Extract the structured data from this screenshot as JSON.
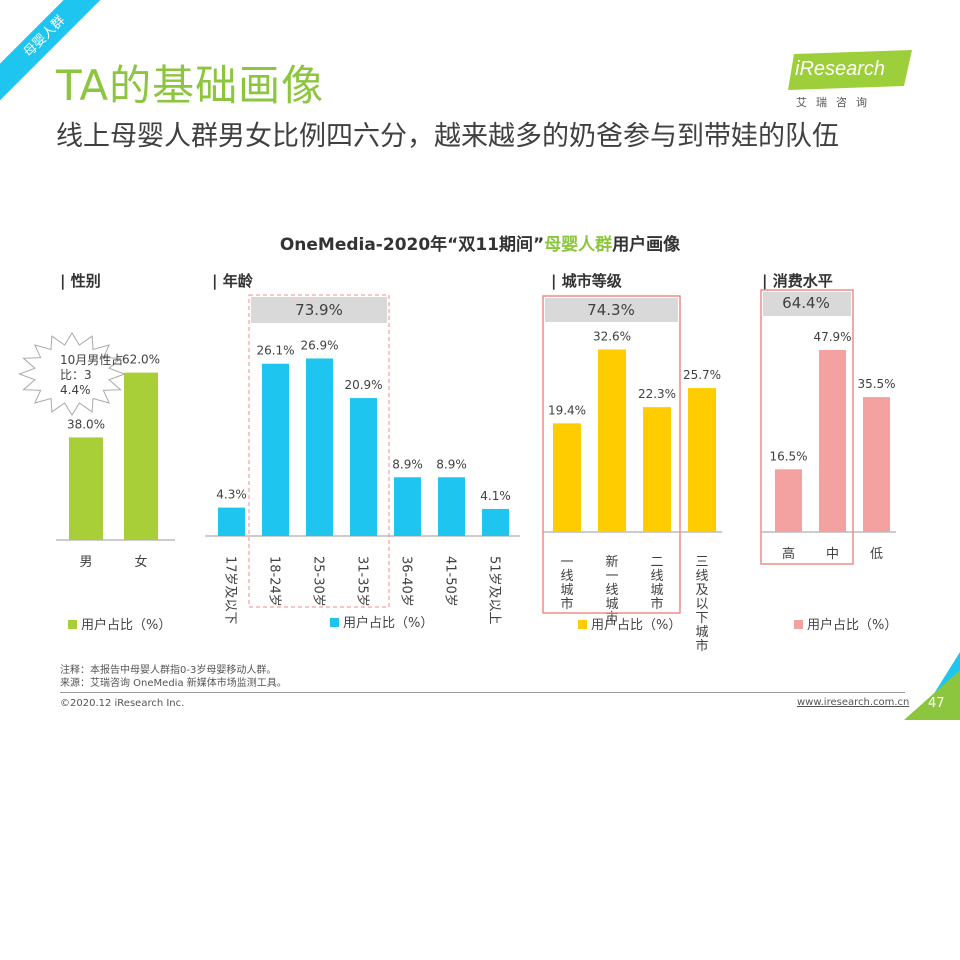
{
  "header": {
    "corner_tag": "母婴人群",
    "title": "TA的基础画像",
    "subtitle": "线上母婴人群男女比例四六分，越来越多的奶爸参与到带娃的队伍"
  },
  "logo": {
    "name": "iResearch",
    "cn": "艾瑞咨询"
  },
  "chart_title": {
    "prefix": "OneMedia-2020年“双11期间”",
    "highlight": "母婴人群",
    "suffix": "用户画像"
  },
  "chart_data": [
    {
      "type": "bar",
      "section": "| 性别",
      "categories": [
        "男",
        "女"
      ],
      "series": [
        {
          "name": "用户占比（%）",
          "values": [
            38.0,
            62.0
          ]
        }
      ],
      "value_labels": [
        "38.0%",
        "62.0%"
      ],
      "color": "#a9cf38",
      "annotation": "10月男性占比：34.4%",
      "legend": "bottom"
    },
    {
      "type": "bar",
      "section": "| 年龄",
      "categories": [
        "17岁及以下",
        "18-24岁",
        "25-30岁",
        "31-35岁",
        "36-40岁",
        "41-50岁",
        "51岁及以上"
      ],
      "series": [
        {
          "name": "用户占比（%）",
          "values": [
            4.3,
            26.1,
            26.9,
            20.9,
            8.9,
            8.9,
            4.1
          ]
        }
      ],
      "value_labels": [
        "4.3%",
        "26.1%",
        "26.9%",
        "20.9%",
        "8.9%",
        "8.9%",
        "4.1%"
      ],
      "color": "#1ec5ee",
      "group_total": "73.9%",
      "legend": "bottom"
    },
    {
      "type": "bar",
      "section": "| 城市等级",
      "categories": [
        "一线城市",
        "新一线城市",
        "二线城市",
        "三线及以下城市"
      ],
      "series": [
        {
          "name": "用户占比（%）",
          "values": [
            19.4,
            32.6,
            22.3,
            25.7
          ]
        }
      ],
      "value_labels": [
        "19.4%",
        "32.6%",
        "22.3%",
        "25.7%"
      ],
      "color": "#ffcc00",
      "group_total": "74.3%",
      "legend": "bottom"
    },
    {
      "type": "bar",
      "section": "| 消费水平",
      "categories": [
        "高",
        "中",
        "低"
      ],
      "series": [
        {
          "name": "用户占比（%）",
          "values": [
            16.5,
            47.9,
            35.5
          ]
        }
      ],
      "value_labels": [
        "16.5%",
        "47.9%",
        "35.5%"
      ],
      "color": "#f4a1a1",
      "group_total": "64.4%",
      "legend": "bottom"
    }
  ],
  "footer": {
    "note": "注释：本报告中母婴人群指0-3岁母婴移动人群。",
    "source": "来源：艾瑞咨询 OneMedia 新媒体市场监测工具。",
    "copyright": "©2020.12 iResearch Inc.",
    "website": "www.iresearch.com.cn",
    "page": "47"
  }
}
